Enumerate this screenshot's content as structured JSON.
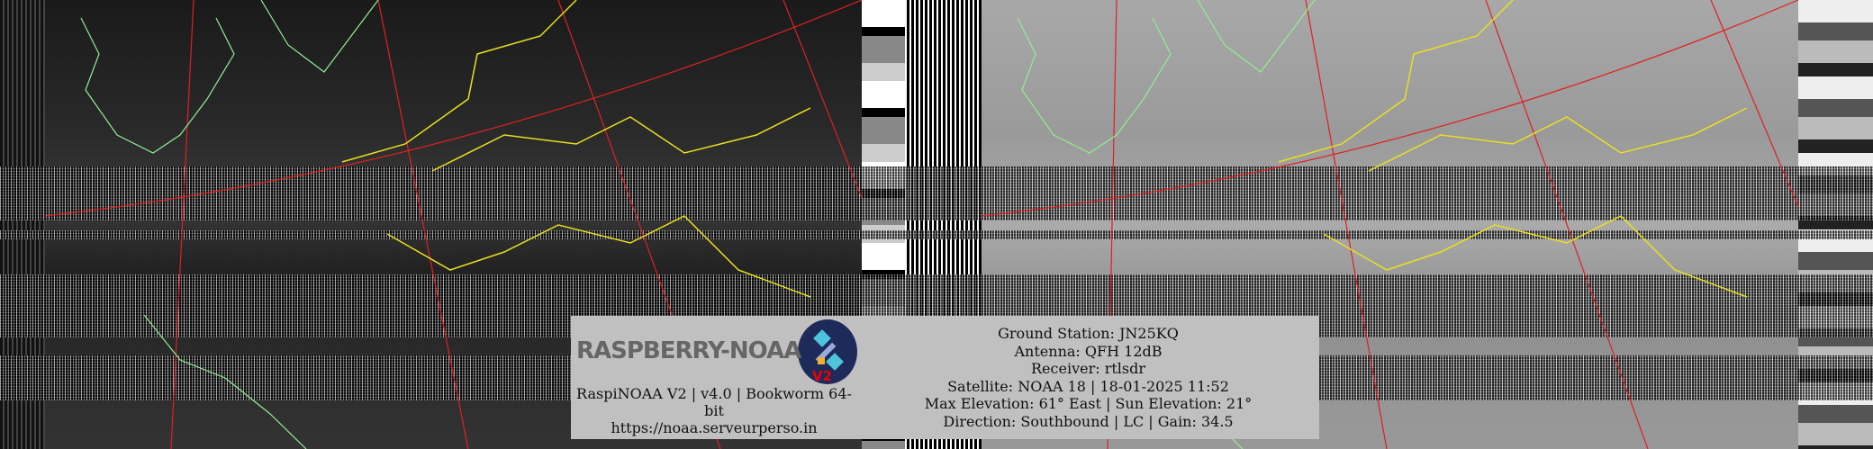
{
  "logo": {
    "text": "RASPBERRY-NOAA",
    "version_badge": "V2"
  },
  "software": {
    "line1": "RaspiNOAA V2 | v4.0 | Bookworm 64-bit",
    "url": "https://noaa.serveurperso.in"
  },
  "pass_info": {
    "ground_station": "Ground Station: JN25KQ",
    "antenna": "Antenna: QFH 12dB",
    "receiver": "Receiver: rtlsdr",
    "satellite": "Satellite: NOAA 18 | 18-01-2025 11:52",
    "elevation": "Max Elevation: 61° East | Sun Elevation: 21°",
    "direction": "Direction: Southbound | LC | Gain: 34.5"
  },
  "colors": {
    "grid_lines": "#e02020",
    "country_borders": "#e8e020",
    "coastlines": "#90ee90",
    "info_box": "#c0c0c0"
  }
}
